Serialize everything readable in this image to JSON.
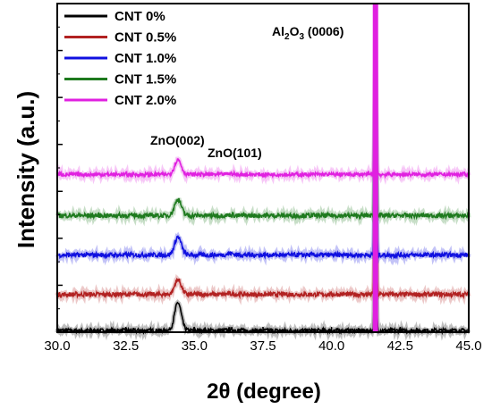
{
  "chart_data": {
    "type": "line",
    "xlabel": "2θ (degree)",
    "ylabel": "Intensity (a.u.)",
    "xlim": [
      30.0,
      45.0
    ],
    "x_ticks": [
      "30.0",
      "32.5",
      "35.0",
      "37.5",
      "40.0",
      "42.5",
      "45.0"
    ],
    "y_ticks_labeled": false,
    "y_ticks_count": 7,
    "legend_position": "top-left",
    "annotations": [
      {
        "text": "ZnO(002)",
        "x": 34.4
      },
      {
        "text": "ZnO(101)",
        "x": 36.3
      },
      {
        "text": "Al2O3 (0006)",
        "x": 41.6
      }
    ],
    "peaks": [
      {
        "label": "ZnO(002)",
        "x": 34.4,
        "width": 0.12
      },
      {
        "label": "ZnO(101)",
        "x": 36.3,
        "width": 0.12
      },
      {
        "label": "Al2O3 (0006)",
        "x": 41.6,
        "width": 0.03
      }
    ],
    "series": [
      {
        "name": "CNT 0%",
        "color": "#000000",
        "baseline": 0.05,
        "peak_heights": [
          0.85,
          0.03,
          4.6
        ],
        "noise": 0.06
      },
      {
        "name": "CNT 0.5%",
        "color": "#b22222",
        "baseline": 1.15,
        "peak_heights": [
          0.45,
          0.02,
          4.8
        ],
        "noise": 0.07
      },
      {
        "name": "CNT 1.0%",
        "color": "#1010e0",
        "baseline": 2.35,
        "peak_heights": [
          0.55,
          0.05,
          4.8
        ],
        "noise": 0.07
      },
      {
        "name": "CNT 1.5%",
        "color": "#1e7a1e",
        "baseline": 3.55,
        "peak_heights": [
          0.5,
          0.02,
          4.8
        ],
        "noise": 0.07
      },
      {
        "name": "CNT 2.0%",
        "color": "#e020e0",
        "baseline": 4.8,
        "peak_heights": [
          0.45,
          0.03,
          4.6
        ],
        "noise": 0.06
      }
    ],
    "y_range": [
      0,
      10
    ]
  }
}
